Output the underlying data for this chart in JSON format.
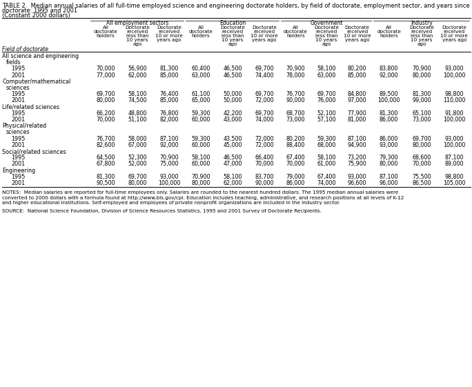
{
  "title1": "TABLE 2.  Median annual salaries of all full-time employed science and engineering doctorate holders, by field of doctorate, employment sector, and years since",
  "title2": "doctorate: 1995 and 2001",
  "title3": "(Constant 2000 dollars)",
  "sector_headers": [
    "All employment sectors",
    "Education",
    "Government",
    "Industry"
  ],
  "field_label": "Field of doctorate",
  "rows": [
    {
      "label": "All science and engineering",
      "indent": 0,
      "data": null
    },
    {
      "label": "fields",
      "indent": 1,
      "data": null
    },
    {
      "label": "1995",
      "indent": 2,
      "data": [
        "70,000",
        "56,900",
        "81,300",
        "60,400",
        "46,500",
        "69,700",
        "70,900",
        "58,100",
        "80,200",
        "83,800",
        "70,900",
        "93,000"
      ]
    },
    {
      "label": "2001",
      "indent": 2,
      "data": [
        "77,000",
        "62,000",
        "85,000",
        "63,000",
        "46,500",
        "74,400",
        "78,000",
        "63,000",
        "85,000",
        "92,000",
        "80,000",
        "100,000"
      ]
    },
    {
      "label": "Computer/mathematical",
      "indent": 0,
      "data": null
    },
    {
      "label": "sciences",
      "indent": 1,
      "data": null
    },
    {
      "label": "1995",
      "indent": 2,
      "data": [
        "69,700",
        "58,100",
        "76,400",
        "61,100",
        "50,000",
        "69,700",
        "76,700",
        "69,700",
        "84,800",
        "89,500",
        "81,300",
        "98,800"
      ]
    },
    {
      "label": "2001",
      "indent": 2,
      "data": [
        "80,000",
        "74,500",
        "85,000",
        "65,000",
        "50,000",
        "72,000",
        "90,000",
        "76,000",
        "97,000",
        "100,000",
        "99,000",
        "110,000"
      ]
    },
    {
      "label": "Life/related sciences",
      "indent": 0,
      "data": null
    },
    {
      "label": "1995",
      "indent": 2,
      "data": [
        "66,200",
        "48,800",
        "76,800",
        "59,300",
        "42,200",
        "69,700",
        "68,700",
        "52,100",
        "77,900",
        "81,300",
        "65,100",
        "91,800"
      ]
    },
    {
      "label": "2001",
      "indent": 2,
      "data": [
        "70,000",
        "51,100",
        "82,000",
        "60,000",
        "43,000",
        "74,000",
        "73,000",
        "57,100",
        "81,000",
        "86,000",
        "73,000",
        "100,000"
      ]
    },
    {
      "label": "Physical/related",
      "indent": 0,
      "data": null
    },
    {
      "label": "sciences",
      "indent": 1,
      "data": null
    },
    {
      "label": "1995",
      "indent": 2,
      "data": [
        "76,700",
        "58,000",
        "87,100",
        "59,300",
        "43,500",
        "72,000",
        "80,200",
        "59,300",
        "87,100",
        "86,000",
        "69,700",
        "93,000"
      ]
    },
    {
      "label": "2001",
      "indent": 2,
      "data": [
        "82,600",
        "67,000",
        "92,000",
        "60,000",
        "45,000",
        "72,000",
        "88,400",
        "68,000",
        "94,900",
        "93,000",
        "80,000",
        "100,000"
      ]
    },
    {
      "label": "Social/related sciences",
      "indent": 0,
      "data": null
    },
    {
      "label": "1995",
      "indent": 2,
      "data": [
        "64,500",
        "52,300",
        "70,900",
        "58,100",
        "46,500",
        "66,400",
        "67,400",
        "58,100",
        "73,200",
        "79,300",
        "68,600",
        "87,100"
      ]
    },
    {
      "label": "2001",
      "indent": 2,
      "data": [
        "67,800",
        "52,000",
        "75,000",
        "60,000",
        "47,000",
        "70,000",
        "70,000",
        "61,000",
        "75,900",
        "80,000",
        "70,000",
        "89,000"
      ]
    },
    {
      "label": "Engineering",
      "indent": 0,
      "data": null
    },
    {
      "label": "1995",
      "indent": 2,
      "data": [
        "81,300",
        "69,700",
        "93,000",
        "70,900",
        "58,100",
        "83,700",
        "79,000",
        "67,400",
        "93,000",
        "87,100",
        "75,500",
        "98,800"
      ]
    },
    {
      "label": "2001",
      "indent": 2,
      "data": [
        "90,500",
        "80,000",
        "100,000",
        "80,000",
        "62,000",
        "90,000",
        "86,000",
        "74,000",
        "96,600",
        "96,000",
        "86,500",
        "105,000"
      ]
    }
  ],
  "notes_lines": [
    "NOTES:  Median salaries are reported for full-time employees only. Salaries are rounded to the nearest hundred dollars. The 1995 median annual salaries were",
    "converted to 2000 dollars with a formula found at http://www.bls.gov/cpi. Education includes teaching, administrative, and research positions at all levels of K-12",
    "and higher educational institutions. Self-employed and employees of private nonprofit organizations are included in the industry sector."
  ],
  "source": "SOURCE:  National Science Foundation, Division of Science Resources Statistics, 1995 and 2001 Survey of Doctorate Recipients."
}
